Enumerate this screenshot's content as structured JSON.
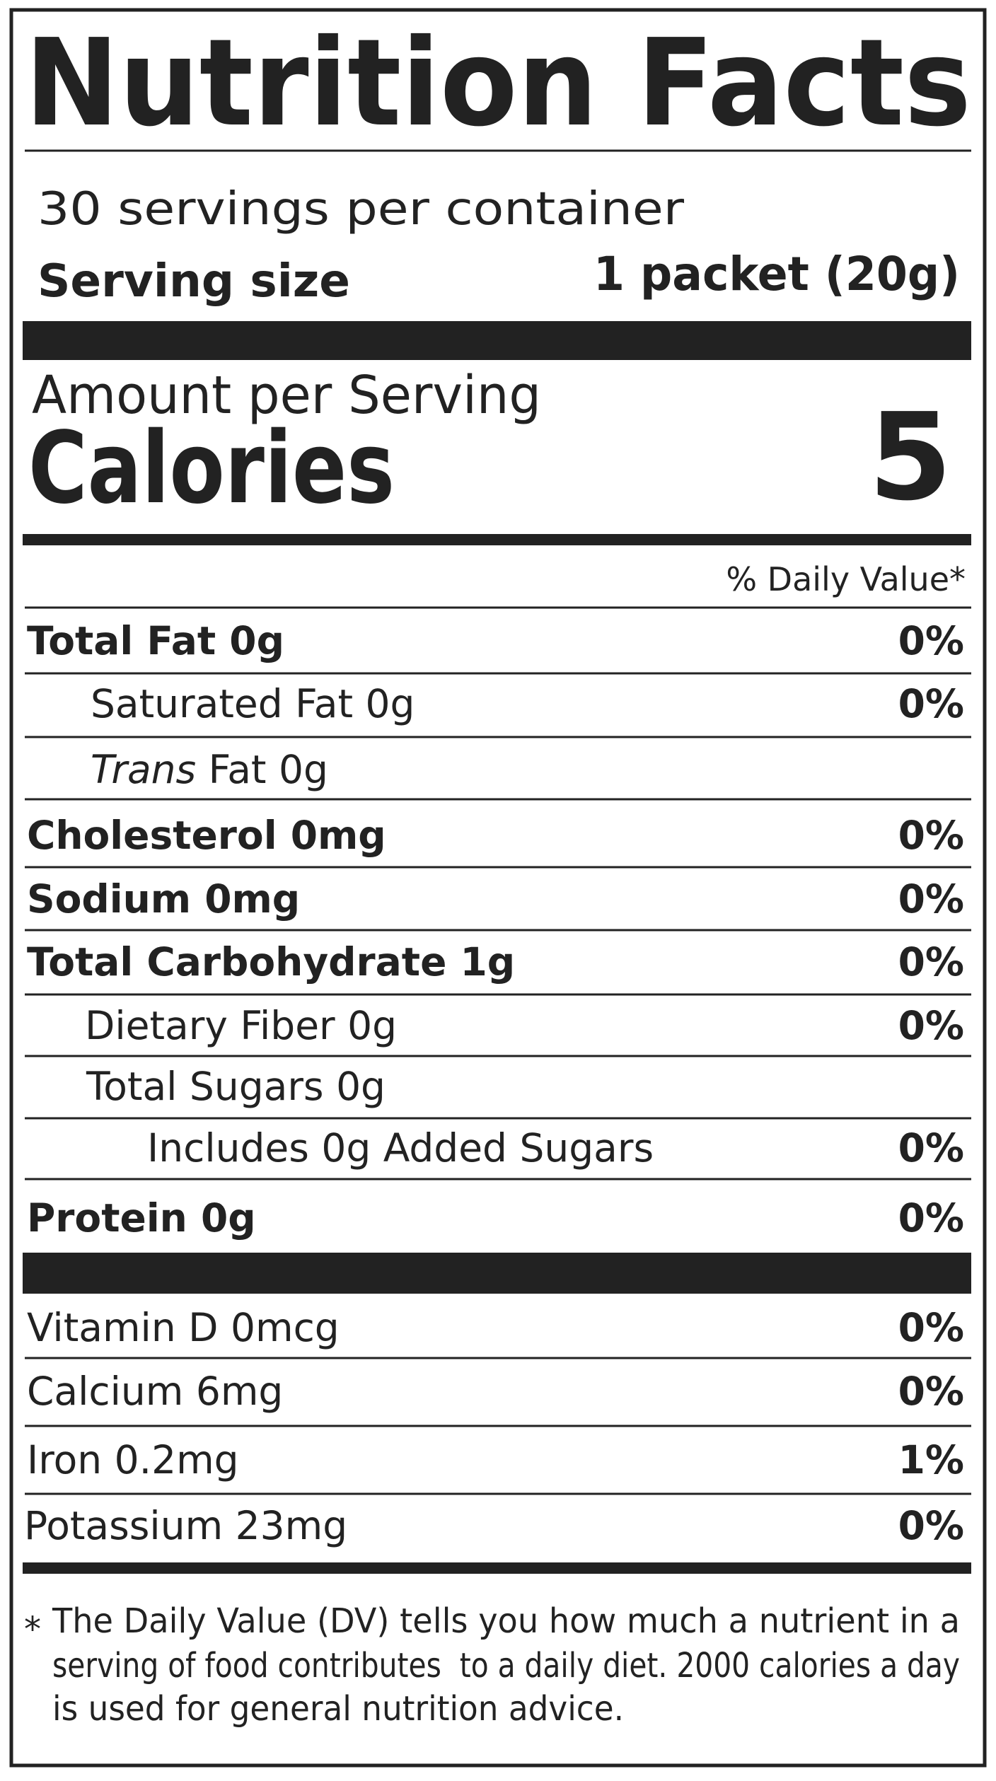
{
  "header": {
    "title": "Nutrition Facts"
  },
  "servings": {
    "per_container": "30 servings per container",
    "serving_size_label": "Serving size",
    "serving_size_value": "1 packet (20g)"
  },
  "calories": {
    "amount_per_serving": "Amount per Serving",
    "label": "Calories",
    "value": 5
  },
  "dv_header": "% Daily Value*",
  "nutrients": [
    {
      "label": "Total Fat 0g",
      "dv": "0%"
    },
    {
      "label": "Saturated Fat 0g",
      "dv": "0%"
    },
    {
      "label_italic": "Trans",
      "label": " Fat 0g"
    },
    {
      "label": "Cholesterol 0mg",
      "dv": "0%"
    },
    {
      "label": "Sodium 0mg",
      "dv": "0%"
    },
    {
      "label": "Total Carbohydrate 1g",
      "dv": "0%"
    },
    {
      "label": "Dietary Fiber 0g",
      "dv": "0%"
    },
    {
      "label": "Total Sugars 0g"
    },
    {
      "label": "Includes 0g Added Sugars",
      "dv": "0%"
    },
    {
      "label": "Protein 0g",
      "dv": "0%"
    }
  ],
  "vitamins": [
    {
      "label": "Vitamin D 0mcg",
      "dv": "0%"
    },
    {
      "label": "Calcium 6mg",
      "dv": "0%"
    },
    {
      "label": "Iron 0.2mg",
      "dv": "1%"
    },
    {
      "label": "Potassium 23mg",
      "dv": "0%"
    }
  ],
  "footnote": {
    "marker": "*",
    "lines": [
      "The Daily Value (DV) tells you how much a nutrient in a",
      "serving of food contributes  to a daily diet. 2000 calories a day",
      "is used for general nutrition advice."
    ]
  }
}
